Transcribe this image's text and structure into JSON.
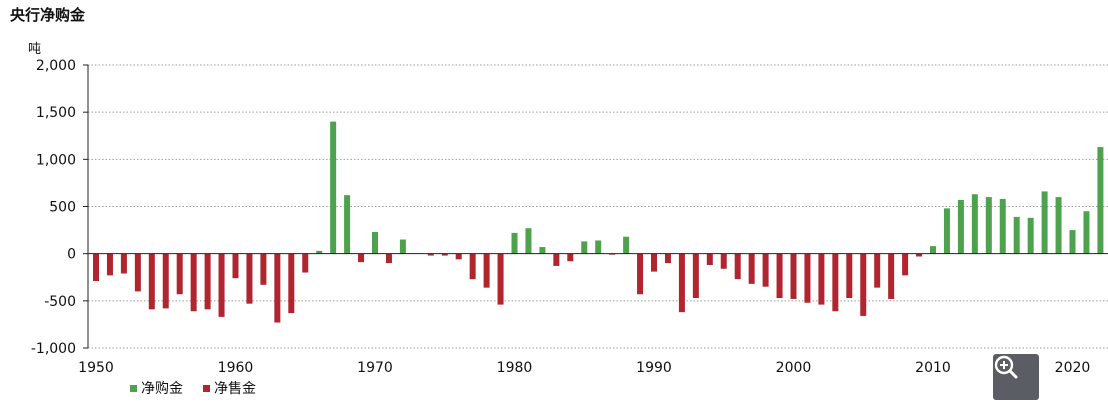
{
  "chart_data": {
    "type": "bar",
    "title": "央行净购金",
    "ylabel": "吨",
    "ylim": [
      -1000,
      2000
    ],
    "yticks": [
      2000,
      1500,
      1000,
      500,
      0,
      -500,
      -1000
    ],
    "ytick_labels": [
      "2,000",
      "1,500",
      "1,000",
      "500",
      "0",
      "-500",
      "-1,000"
    ],
    "xticks": [
      1950,
      1960,
      1970,
      1980,
      1990,
      2000,
      2010,
      2020
    ],
    "grid": "horizontal dotted",
    "legend_position": "bottom-left",
    "series": [
      {
        "name": "净购金",
        "color": "#4ea24e"
      },
      {
        "name": "净售金",
        "color": "#b1252f"
      }
    ],
    "x": [
      1950,
      1951,
      1952,
      1953,
      1954,
      1955,
      1956,
      1957,
      1958,
      1959,
      1960,
      1961,
      1962,
      1963,
      1964,
      1965,
      1966,
      1967,
      1968,
      1969,
      1970,
      1971,
      1972,
      1973,
      1974,
      1975,
      1976,
      1977,
      1978,
      1979,
      1980,
      1981,
      1982,
      1983,
      1984,
      1985,
      1986,
      1987,
      1988,
      1989,
      1990,
      1991,
      1992,
      1993,
      1994,
      1995,
      1996,
      1997,
      1998,
      1999,
      2000,
      2001,
      2002,
      2003,
      2004,
      2005,
      2006,
      2007,
      2008,
      2009,
      2010,
      2011,
      2012,
      2013,
      2014,
      2015,
      2016,
      2017,
      2018,
      2019,
      2020,
      2021,
      2022
    ],
    "values": [
      -290,
      -230,
      -210,
      -400,
      -590,
      -580,
      -430,
      -610,
      -590,
      -670,
      -260,
      -530,
      -330,
      -730,
      -630,
      -200,
      30,
      1400,
      620,
      -90,
      230,
      -100,
      150,
      0,
      -20,
      -20,
      -60,
      -270,
      -360,
      -540,
      220,
      270,
      70,
      -130,
      -80,
      130,
      140,
      -10,
      180,
      -430,
      -190,
      -100,
      -620,
      -470,
      -120,
      -160,
      -270,
      -320,
      -350,
      -470,
      -480,
      -520,
      -540,
      -610,
      -470,
      -660,
      -360,
      -480,
      -230,
      -30,
      80,
      480,
      570,
      630,
      600,
      580,
      390,
      380,
      660,
      600,
      250,
      450,
      1130
    ]
  },
  "zoom_button": {
    "icon": "zoom-in-icon"
  }
}
